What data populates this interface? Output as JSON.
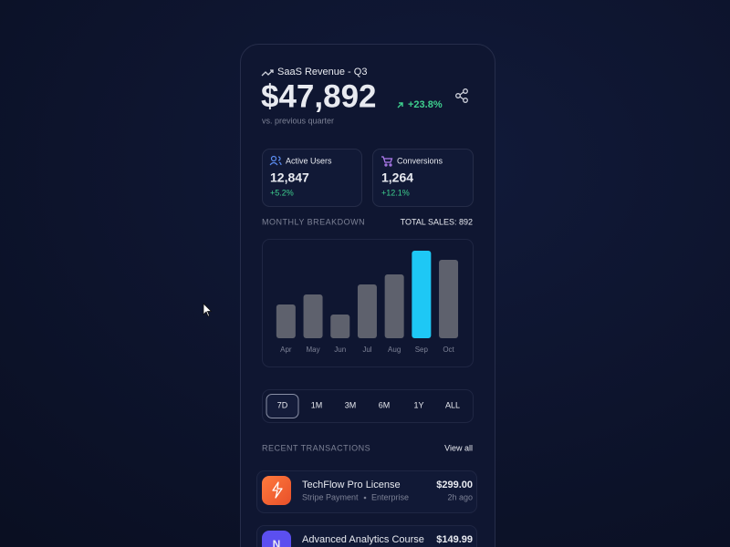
{
  "header": {
    "title": "SaaS Revenue - Q3",
    "value": "$47,892",
    "change": "+23.8%",
    "subtitle": "vs. previous quarter"
  },
  "stats": [
    {
      "label": "Active Users",
      "value": "12,847",
      "change": "+5.2%"
    },
    {
      "label": "Conversions",
      "value": "1,264",
      "change": "+12.1%"
    }
  ],
  "chart_data": {
    "type": "bar",
    "title": "MONTHLY BREAKDOWN",
    "annotation": "TOTAL SALES: 892",
    "categories": [
      "Apr",
      "May",
      "Jun",
      "Jul",
      "Aug",
      "Sep",
      "Oct"
    ],
    "values": [
      37,
      48,
      26,
      59,
      70,
      96,
      86
    ],
    "colors": [
      "#5e616d",
      "#5e616d",
      "#5e616d",
      "#5e616d",
      "#5e616d",
      "#1ec8f5",
      "#5e616d"
    ],
    "ylim": [
      0,
      100
    ]
  },
  "timeframes": {
    "options": [
      "7D",
      "1M",
      "3M",
      "6M",
      "1Y",
      "ALL"
    ],
    "selected": "7D"
  },
  "transactions": {
    "title": "RECENT TRANSACTIONS",
    "link": "View all",
    "items": [
      {
        "name": "TechFlow Pro License",
        "method": "Stripe Payment",
        "plan": "Enterprise",
        "amount": "$299.00",
        "time": "2h ago"
      },
      {
        "icon": "N",
        "name": "Advanced Analytics Course",
        "amount": "$149.99"
      }
    ]
  }
}
